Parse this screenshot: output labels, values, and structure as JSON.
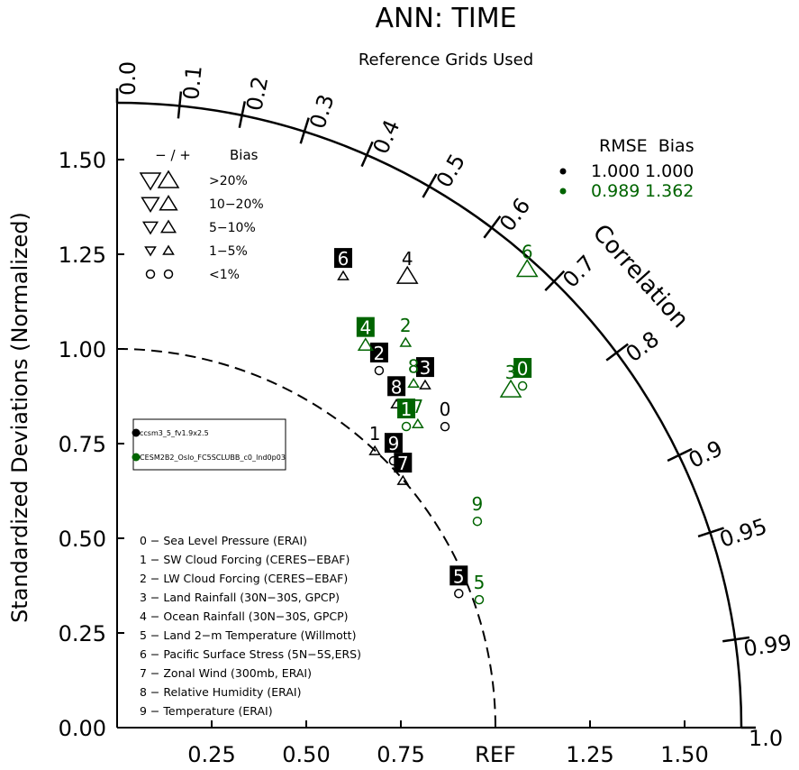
{
  "chart_data": {
    "type": "scatter",
    "subtype": "taylor-diagram",
    "title": "ANN: TIME",
    "subtitle": "Reference Grids Used",
    "ylabel": "Standardized Deviations (Normalized)",
    "arc_label": "Correlation",
    "std_max": 1.65,
    "std_ticks": [
      0.25,
      0.5,
      0.75,
      1.0,
      1.25,
      1.5
    ],
    "x_tick_labels": [
      "0.25",
      "0.50",
      "0.75",
      "REF",
      "1.25",
      "1.50"
    ],
    "y_ticks": [
      0,
      0.25,
      0.5,
      0.75,
      1.0,
      1.25,
      1.5
    ],
    "y_tick_labels": [
      "0.00",
      "0.25",
      "0.50",
      "0.75",
      "1.00",
      "1.25",
      "1.50"
    ],
    "corr_ticks": [
      0.0,
      0.1,
      0.2,
      0.3,
      0.4,
      0.5,
      0.6,
      0.7,
      0.8,
      0.9,
      0.95,
      0.99,
      1.0
    ],
    "corr_tick_labels": [
      "0.0",
      "0.1",
      "0.2",
      "0.3",
      "0.4",
      "0.5",
      "0.6",
      "0.7",
      "0.8",
      "0.9",
      "0.95",
      "0.99",
      "1.0"
    ],
    "ref_arc_std": 1.0,
    "bias_legend": {
      "header": [
        "− / +",
        "Bias"
      ],
      "rows": [
        {
          "label": ">20%",
          "size": "xl"
        },
        {
          "label": "10−20%",
          "size": "l"
        },
        {
          "label": "5−10%",
          "size": "m"
        },
        {
          "label": "1−5%",
          "size": "s"
        },
        {
          "label": "<1%",
          "size": "circle"
        }
      ]
    },
    "rmse_legend": {
      "header": "RMSE  Bias",
      "rows": [
        {
          "rmse": "1.000",
          "bias": "1.000",
          "color": "#000000"
        },
        {
          "rmse": "0.989",
          "bias": "1.362",
          "color": "#006400"
        }
      ]
    },
    "case_legend": [
      "ccsm3_5_fv1.9x2.5",
      "CESM2B2_Oslo_FC5SCLUBB_c0_lnd0p03"
    ],
    "variables": [
      "0 − Sea Level Pressure (ERAI)",
      "1 − SW Cloud Forcing (CERES−EBAF)",
      "2 − LW Cloud Forcing (CERES−EBAF)",
      "3 − Land Rainfall (30N−30S, GPCP)",
      "4 − Ocean Rainfall (30N−30S, GPCP)",
      "5 − Land 2−m Temperature (Willmott)",
      "6 − Pacific Surface Stress (5N−5S,ERS)",
      "7 − Zonal Wind (300mb, ERAI)",
      "8 − Relative Humidity (ERAI)",
      "9 − Temperature (ERAI)"
    ],
    "series": [
      {
        "name": "ccsm3_5_fv1.9x2.5",
        "color": "#000000",
        "points": [
          {
            "id": "0",
            "std": 1.176,
            "corr": 0.737,
            "bias": "circle",
            "boxed": false
          },
          {
            "id": "1",
            "std": 0.999,
            "corr": 0.682,
            "bias": "s",
            "boxed": false
          },
          {
            "id": "2",
            "std": 1.17,
            "corr": 0.592,
            "bias": "circle",
            "boxed": true
          },
          {
            "id": "3",
            "std": 1.217,
            "corr": 0.669,
            "bias": "s",
            "boxed": true
          },
          {
            "id": "4",
            "std": 1.418,
            "corr": 0.541,
            "bias": "xl",
            "boxed": false
          },
          {
            "id": "5",
            "std": 0.97,
            "corr": 0.931,
            "bias": "circle",
            "boxed": true
          },
          {
            "id": "6",
            "std": 1.334,
            "corr": 0.448,
            "bias": "s",
            "boxed": true
          },
          {
            "id": "7",
            "std": 0.998,
            "corr": 0.757,
            "bias": "s",
            "boxed": true
          },
          {
            "id": "8",
            "std": 1.129,
            "corr": 0.654,
            "bias": "s",
            "boxed": true
          },
          {
            "id": "9",
            "std": 1.015,
            "corr": 0.72,
            "bias": "circle",
            "boxed": true
          }
        ]
      },
      {
        "name": "CESM2B2_Oslo_FC5SCLUBB_c0_lnd0p03",
        "color": "#006400",
        "points": [
          {
            "id": "0",
            "std": 1.401,
            "corr": 0.765,
            "bias": "circle",
            "boxed": true
          },
          {
            "id": "1",
            "std": 1.103,
            "corr": 0.693,
            "bias": "circle",
            "boxed": true
          },
          {
            "id": "2",
            "std": 1.271,
            "corr": 0.6,
            "bias": "s",
            "boxed": false
          },
          {
            "id": "3",
            "std": 1.371,
            "corr": 0.759,
            "bias": "xl",
            "boxed": false
          },
          {
            "id": "4",
            "std": 1.205,
            "corr": 0.545,
            "bias": "m",
            "boxed": true
          },
          {
            "id": "5",
            "std": 1.015,
            "corr": 0.943,
            "bias": "circle",
            "boxed": false
          },
          {
            "id": "6",
            "std": 1.625,
            "corr": 0.667,
            "bias": "xl",
            "boxed": false
          },
          {
            "id": "7",
            "std": 1.129,
            "corr": 0.704,
            "bias": "s",
            "boxed": false
          },
          {
            "id": "8",
            "std": 1.2,
            "corr": 0.653,
            "bias": "s",
            "boxed": false
          },
          {
            "id": "9",
            "std": 1.097,
            "corr": 0.868,
            "bias": "circle",
            "boxed": false
          }
        ]
      }
    ]
  }
}
